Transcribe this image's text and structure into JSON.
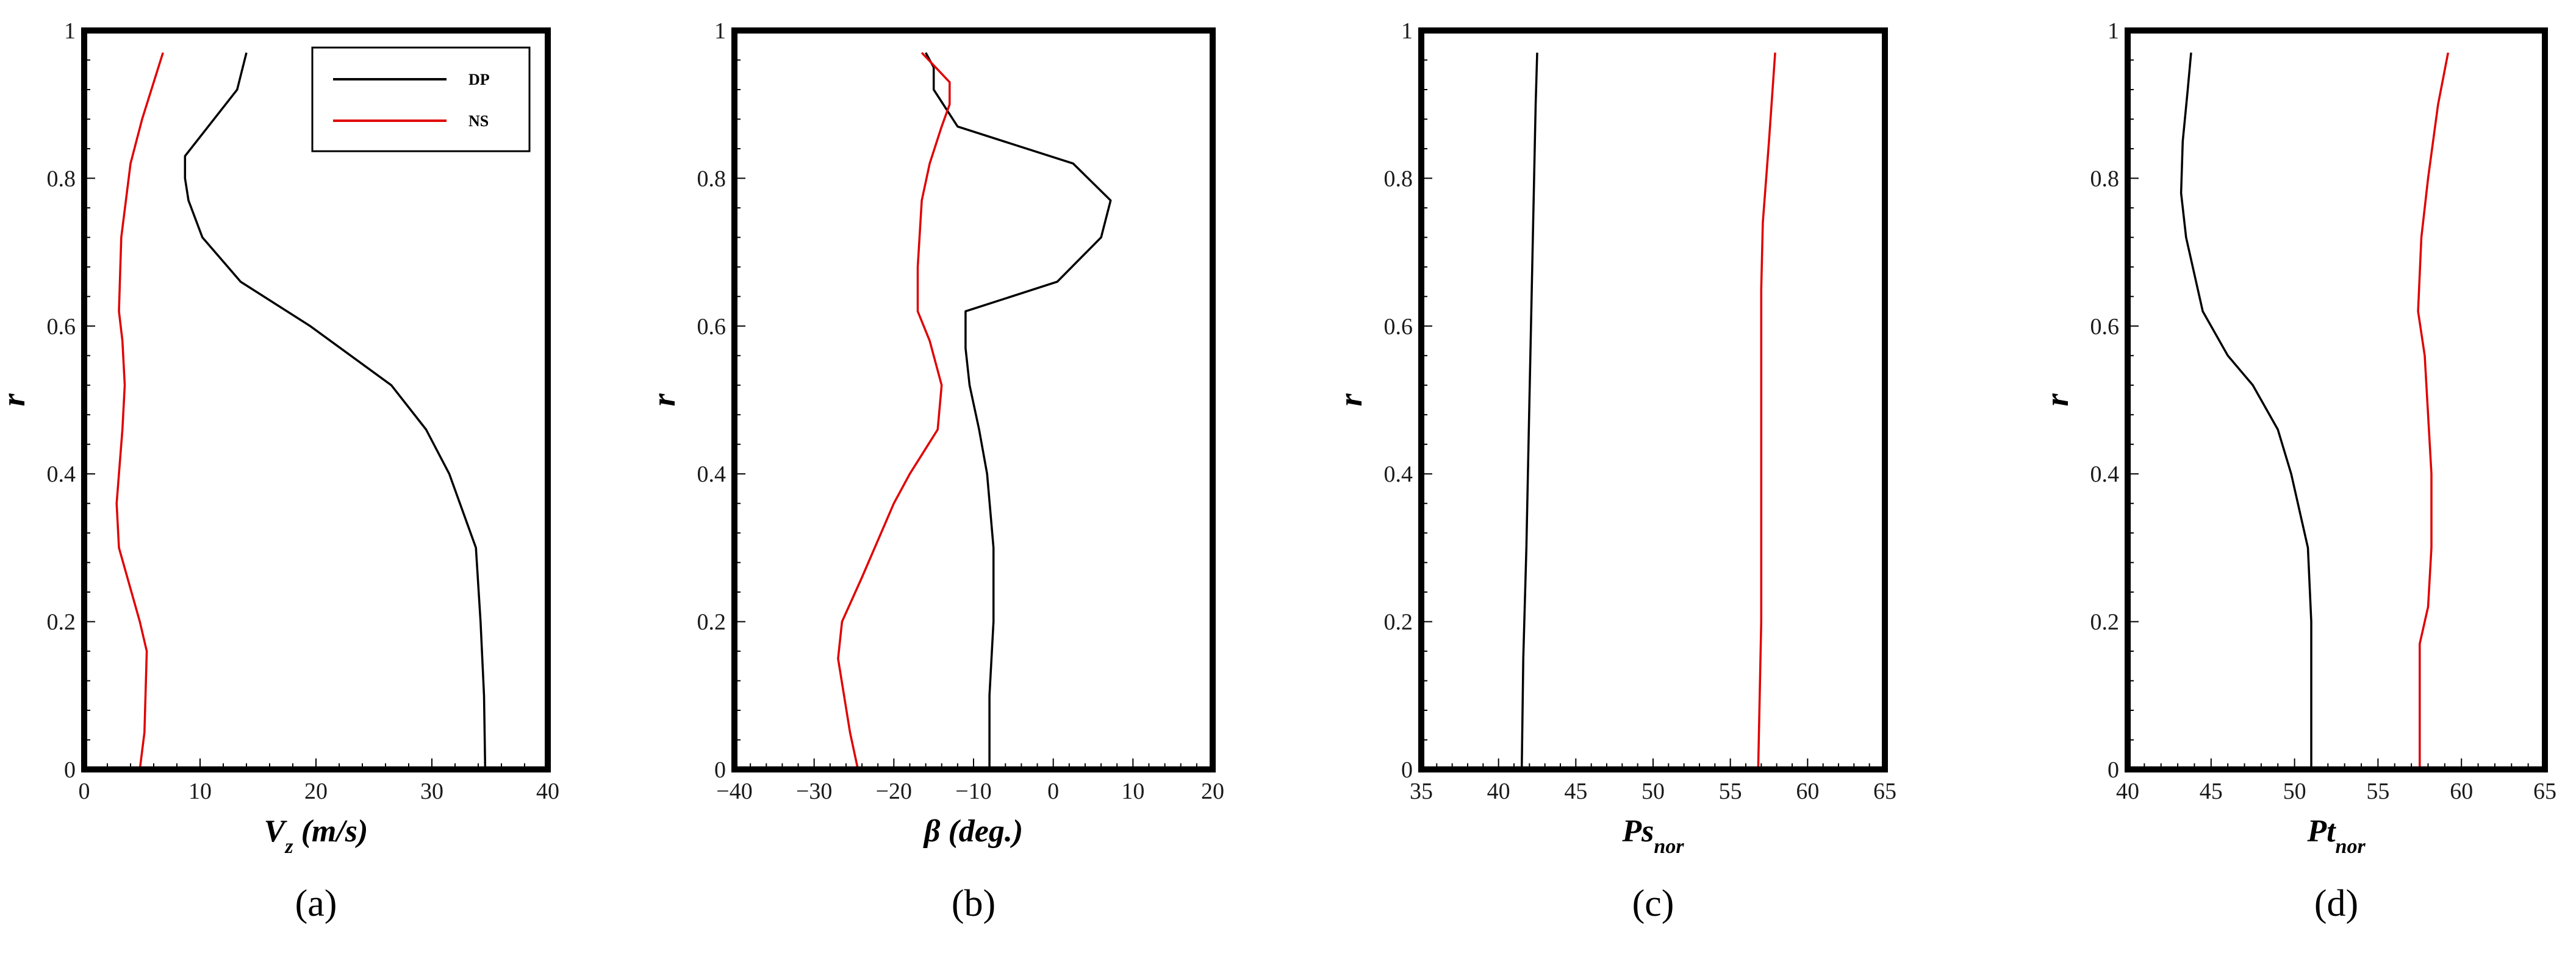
{
  "colors": {
    "DP": "#000000",
    "NS": "#e00000"
  },
  "chart_data": [
    {
      "type": "line",
      "panel_label": "(a)",
      "xlabel": "V_z (m/s)",
      "ylabel": "r",
      "xlim": [
        0,
        40
      ],
      "ylim": [
        0,
        1
      ],
      "xticks": [
        0,
        10,
        20,
        30,
        40
      ],
      "yticks": [
        0,
        0.2,
        0.4,
        0.6,
        0.8,
        1
      ],
      "xtick_labels": [
        "0",
        "10",
        "20",
        "30",
        "40"
      ],
      "ytick_labels": [
        "0",
        "0.2",
        "0.4",
        "0.6",
        "0.8",
        "1"
      ],
      "legend": {
        "position": "top-right",
        "entries": [
          "DP",
          "NS"
        ]
      },
      "series": [
        {
          "name": "DP",
          "color": "#000000",
          "x": [
            34.6,
            34.5,
            34.2,
            33.8,
            31.5,
            29.5,
            26.5,
            19.5,
            13.5,
            10.2,
            9.0,
            8.7,
            8.7,
            13.2,
            14.0
          ],
          "r": [
            0.0,
            0.1,
            0.2,
            0.3,
            0.4,
            0.46,
            0.52,
            0.6,
            0.66,
            0.72,
            0.77,
            0.8,
            0.83,
            0.92,
            0.97
          ]
        },
        {
          "name": "NS",
          "color": "#e00000",
          "x": [
            4.8,
            5.2,
            5.4,
            4.8,
            3.0,
            2.8,
            3.3,
            3.5,
            3.3,
            3.0,
            3.2,
            4.0,
            5.0,
            6.0,
            6.8
          ],
          "r": [
            0.0,
            0.05,
            0.16,
            0.2,
            0.3,
            0.36,
            0.46,
            0.52,
            0.58,
            0.62,
            0.72,
            0.82,
            0.88,
            0.93,
            0.97
          ]
        }
      ]
    },
    {
      "type": "line",
      "panel_label": "(b)",
      "xlabel": "β (deg.)",
      "ylabel": "r",
      "xlim": [
        -40,
        20
      ],
      "ylim": [
        0,
        1
      ],
      "xticks": [
        -40,
        -30,
        -20,
        -10,
        0,
        10,
        20
      ],
      "yticks": [
        0,
        0.2,
        0.4,
        0.6,
        0.8,
        1
      ],
      "xtick_labels": [
        "−40",
        "−30",
        "−20",
        "−10",
        "0",
        "10",
        "20"
      ],
      "ytick_labels": [
        "0",
        "0.2",
        "0.4",
        "0.6",
        "0.8",
        "1"
      ],
      "series": [
        {
          "name": "DP",
          "color": "#000000",
          "x": [
            -8.0,
            -8.0,
            -7.5,
            -7.5,
            -8.3,
            -9.3,
            -10.5,
            -11.0,
            -11.0,
            0.5,
            6.0,
            7.2,
            2.5,
            -12.0,
            -15.0,
            -15.0,
            -16.0
          ],
          "r": [
            0.0,
            0.1,
            0.2,
            0.3,
            0.4,
            0.46,
            0.52,
            0.57,
            0.62,
            0.66,
            0.72,
            0.77,
            0.82,
            0.87,
            0.92,
            0.95,
            0.97
          ]
        },
        {
          "name": "NS",
          "color": "#e00000",
          "x": [
            -24.5,
            -25.5,
            -27.0,
            -26.5,
            -24.0,
            -22.0,
            -20.0,
            -18.0,
            -14.5,
            -14.0,
            -15.5,
            -17.0,
            -17.0,
            -16.5,
            -15.5,
            -14.0,
            -13.0,
            -13.0,
            -16.5
          ],
          "r": [
            0.0,
            0.05,
            0.15,
            0.2,
            0.26,
            0.31,
            0.36,
            0.4,
            0.46,
            0.52,
            0.58,
            0.62,
            0.68,
            0.77,
            0.82,
            0.87,
            0.9,
            0.93,
            0.97
          ]
        }
      ]
    },
    {
      "type": "line",
      "panel_label": "(c)",
      "xlabel": "Ps_nor",
      "ylabel": "r",
      "xlim": [
        35,
        65
      ],
      "ylim": [
        0,
        1
      ],
      "xticks": [
        35,
        40,
        45,
        50,
        55,
        60,
        65
      ],
      "yticks": [
        0,
        0.2,
        0.4,
        0.6,
        0.8,
        1
      ],
      "xtick_labels": [
        "35",
        "40",
        "45",
        "50",
        "55",
        "60",
        "65"
      ],
      "ytick_labels": [
        "0",
        "0.2",
        "0.4",
        "0.6",
        "0.8",
        "1"
      ],
      "series": [
        {
          "name": "DP",
          "color": "#000000",
          "x": [
            41.5,
            41.6,
            41.8,
            42.0,
            42.2,
            42.4,
            42.5
          ],
          "r": [
            0.0,
            0.15,
            0.3,
            0.5,
            0.7,
            0.9,
            0.97
          ]
        },
        {
          "name": "NS",
          "color": "#e00000",
          "x": [
            56.8,
            56.9,
            57.0,
            57.0,
            57.0,
            57.0,
            57.1,
            57.5,
            57.9
          ],
          "r": [
            0.0,
            0.1,
            0.2,
            0.35,
            0.5,
            0.65,
            0.74,
            0.85,
            0.97
          ]
        }
      ]
    },
    {
      "type": "line",
      "panel_label": "(d)",
      "xlabel": "Pt_nor",
      "ylabel": "r",
      "xlim": [
        40,
        65
      ],
      "ylim": [
        0,
        1
      ],
      "xticks": [
        40,
        45,
        50,
        55,
        60,
        65
      ],
      "yticks": [
        0,
        0.2,
        0.4,
        0.6,
        0.8,
        1
      ],
      "xtick_labels": [
        "40",
        "45",
        "50",
        "55",
        "60",
        "65"
      ],
      "ytick_labels": [
        "0",
        "0.2",
        "0.4",
        "0.6",
        "0.8",
        "1"
      ],
      "series": [
        {
          "name": "DP",
          "color": "#000000",
          "x": [
            51.0,
            51.0,
            51.0,
            50.8,
            49.8,
            49.0,
            47.5,
            46.0,
            44.5,
            43.5,
            43.2,
            43.3,
            43.6,
            43.8
          ],
          "r": [
            0.0,
            0.1,
            0.2,
            0.3,
            0.4,
            0.46,
            0.52,
            0.56,
            0.62,
            0.72,
            0.78,
            0.85,
            0.92,
            0.97
          ]
        },
        {
          "name": "NS",
          "color": "#e00000",
          "x": [
            57.5,
            57.5,
            57.5,
            58.0,
            58.2,
            58.2,
            58.0,
            57.8,
            57.4,
            57.6,
            58.0,
            58.6,
            59.2
          ],
          "r": [
            0.0,
            0.1,
            0.17,
            0.22,
            0.3,
            0.4,
            0.48,
            0.56,
            0.62,
            0.72,
            0.8,
            0.9,
            0.97
          ]
        }
      ]
    }
  ]
}
